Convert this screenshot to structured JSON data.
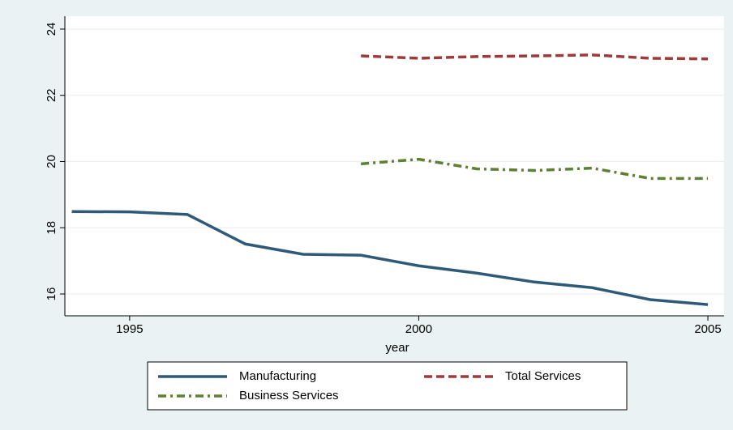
{
  "chart_data": {
    "type": "line",
    "xlabel": "year",
    "x": [
      1994,
      1995,
      1996,
      1997,
      1998,
      1999,
      2000,
      2001,
      2002,
      2003,
      2004,
      2005
    ],
    "series": [
      {
        "name": "Manufacturing",
        "color": "#2e5a7a",
        "linestyle": "solid",
        "values": [
          18.49,
          18.48,
          18.4,
          17.51,
          17.2,
          17.17,
          16.85,
          16.63,
          16.36,
          16.19,
          15.83,
          15.68
        ]
      },
      {
        "name": "Total Services",
        "color": "#a03a3a",
        "linestyle": "dash",
        "values": [
          null,
          null,
          null,
          null,
          null,
          23.19,
          23.12,
          23.17,
          23.19,
          23.22,
          23.12,
          23.1
        ]
      },
      {
        "name": "Business Services",
        "color": "#5f7f35",
        "linestyle": "dashdot",
        "values": [
          null,
          null,
          null,
          null,
          null,
          19.93,
          20.07,
          19.78,
          19.73,
          19.8,
          19.49,
          19.49
        ]
      }
    ],
    "xlim": [
      1993.88,
      2005.28
    ],
    "xticks": [
      1995,
      2000,
      2005
    ],
    "ylim": [
      15.34,
      24.39
    ],
    "yticks": [
      16,
      18,
      20,
      22,
      24
    ],
    "grid": true,
    "legend": "bottom"
  }
}
